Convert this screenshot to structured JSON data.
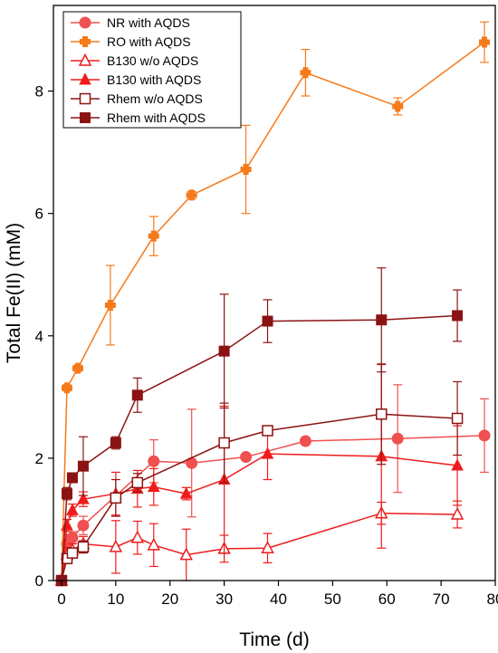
{
  "chart_data": {
    "type": "line",
    "xlabel": "Time (d)",
    "ylabel": "Total Fe(II) (mM)",
    "xlim": [
      -1.5,
      80
    ],
    "ylim": [
      0,
      9.4
    ],
    "xticks": [
      0,
      10,
      20,
      30,
      40,
      50,
      60,
      70,
      80
    ],
    "yticks": [
      0,
      2,
      4,
      6,
      8
    ],
    "grid": false,
    "legend_position": "top-left",
    "series": [
      {
        "name": "NR with AQDS",
        "color": "#f05050",
        "marker": "circle-filled",
        "x": [
          0,
          1,
          2,
          4,
          17,
          24,
          34,
          45,
          62,
          78
        ],
        "y": [
          0,
          0.6,
          0.7,
          0.9,
          1.95,
          1.92,
          2.02,
          2.28,
          2.32,
          2.37
        ],
        "err": [
          0,
          0.15,
          0.1,
          0.15,
          0.35,
          0.88,
          0,
          0.05,
          0.88,
          0.6
        ]
      },
      {
        "name": "RO with AQDS",
        "color": "#f57a1a",
        "marker": "plus-filled",
        "x": [
          0,
          1,
          3,
          9,
          17,
          24,
          34,
          45,
          62,
          78
        ],
        "y": [
          0,
          3.15,
          3.47,
          4.5,
          5.63,
          6.3,
          6.72,
          8.3,
          7.75,
          8.8
        ],
        "err": [
          0,
          0.05,
          0.05,
          0.65,
          0.32,
          0.06,
          0.72,
          0.38,
          0.14,
          0.33
        ]
      },
      {
        "name": "B130 w/o AQDS",
        "color": "#ee1c1c",
        "marker": "triangle-open",
        "x": [
          0,
          1,
          2,
          4,
          10,
          14,
          17,
          23,
          30,
          38,
          59,
          73
        ],
        "y": [
          0,
          0.42,
          0.5,
          0.6,
          0.55,
          0.7,
          0.58,
          0.42,
          0.52,
          0.53,
          1.1,
          1.08
        ],
        "err": [
          0,
          0.12,
          0.1,
          0.12,
          0.43,
          0.27,
          0.35,
          0.42,
          0.22,
          0.24,
          0.18,
          0.22
        ]
      },
      {
        "name": "B130 with AQDS",
        "color": "#ee1c1c",
        "marker": "triangle-filled",
        "x": [
          0,
          1,
          2,
          4,
          10,
          14,
          17,
          23,
          30,
          38,
          59,
          73
        ],
        "y": [
          0,
          0.9,
          1.15,
          1.33,
          1.42,
          1.5,
          1.53,
          1.42,
          1.65,
          2.07,
          2.03,
          1.88
        ],
        "err": [
          0,
          0.1,
          0.1,
          0.12,
          0.35,
          0.3,
          0.3,
          0.1,
          1.2,
          0.42,
          1.5,
          0.65
        ]
      },
      {
        "name": "Rhem w/o AQDS",
        "color": "#8c1313",
        "marker": "square-open",
        "x": [
          0,
          1,
          2,
          4,
          10,
          14,
          30,
          38,
          59,
          73
        ],
        "y": [
          0,
          0.36,
          0.45,
          0.55,
          1.35,
          1.6,
          2.25,
          2.45,
          2.72,
          2.65
        ],
        "err": [
          0,
          0.08,
          0.08,
          0.1,
          0.3,
          0.15,
          0.65,
          0.06,
          0.82,
          0.6
        ]
      },
      {
        "name": "Rhem with AQDS",
        "color": "#8c1313",
        "marker": "square-filled",
        "x": [
          0,
          1,
          2,
          4,
          10,
          14,
          30,
          38,
          59,
          73
        ],
        "y": [
          0,
          1.42,
          1.68,
          1.87,
          2.25,
          3.03,
          3.75,
          4.24,
          4.26,
          4.33
        ],
        "err": [
          0,
          0.1,
          0.08,
          0.48,
          0.1,
          0.28,
          0.93,
          0.35,
          0.85,
          0.42
        ]
      }
    ]
  }
}
